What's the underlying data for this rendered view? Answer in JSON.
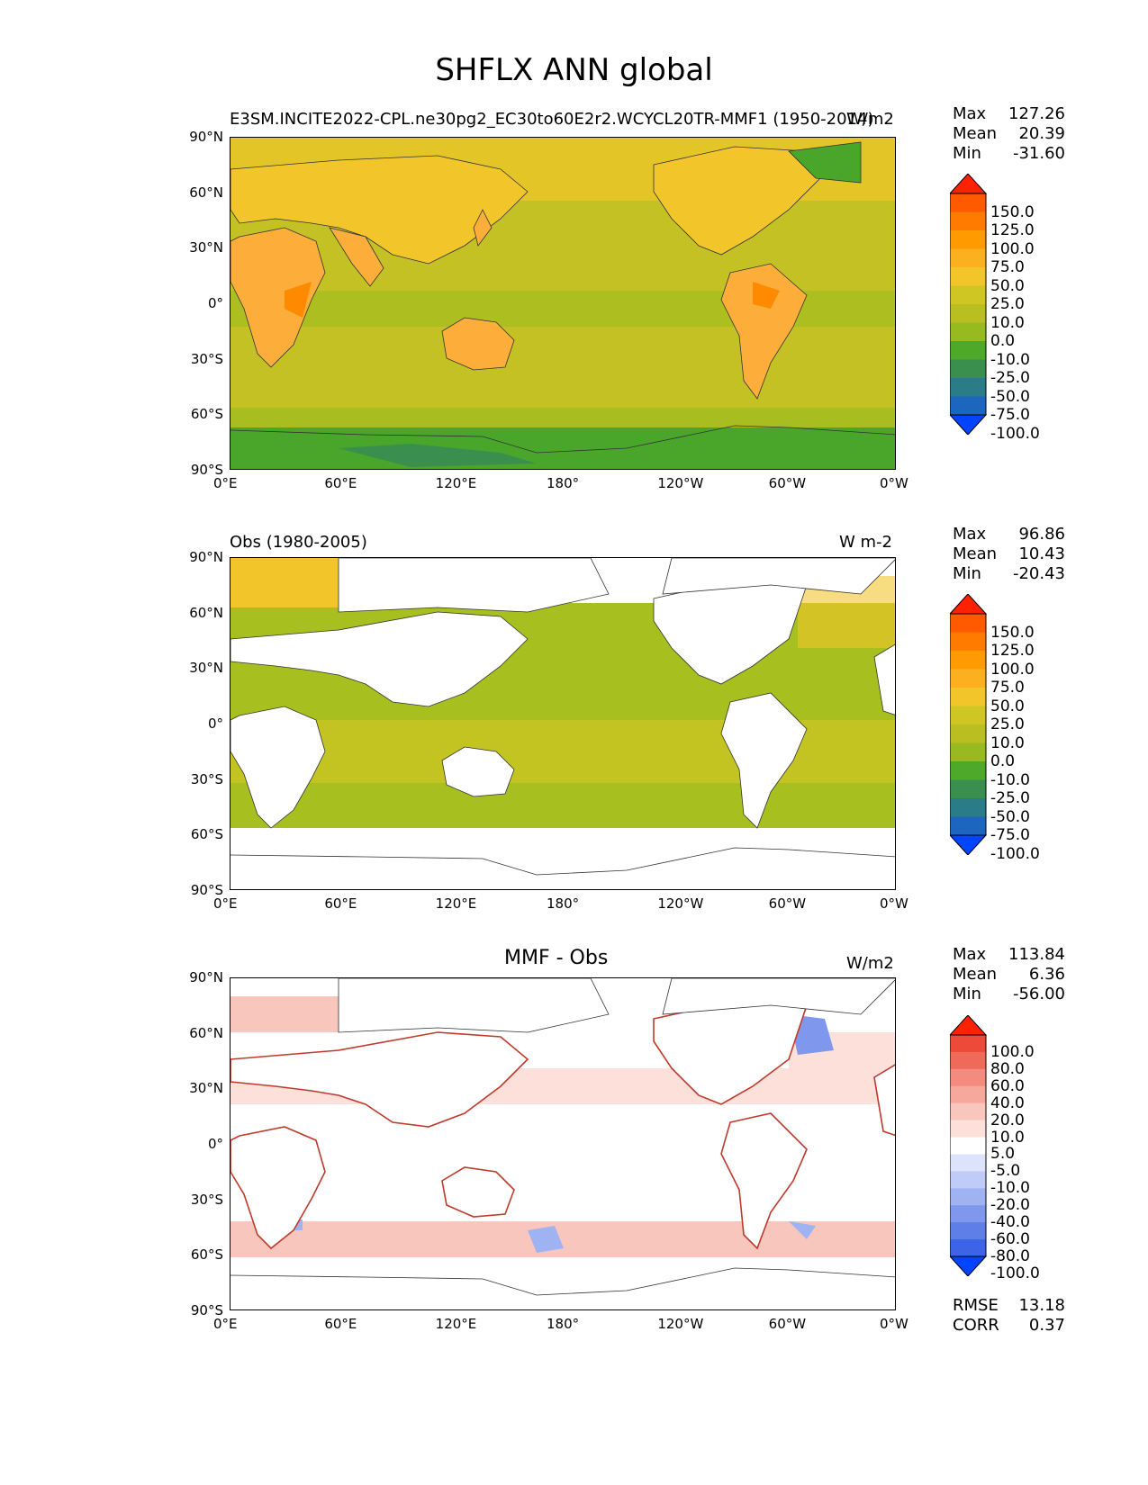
{
  "title": "SHFLX ANN global",
  "panels": [
    {
      "left_text": "E3SM.INCITE2022-CPL.ne30pg2_EC30to60E2r2.WCYCL20TR-MMF1 (1950-2014)",
      "center_text": "",
      "right_text": "W/m2",
      "stats": [
        {
          "label": "Max",
          "value": "127.26"
        },
        {
          "label": "Mean",
          "value": "20.39"
        },
        {
          "label": "Min",
          "value": "-31.60"
        }
      ],
      "colorbar": {
        "levels": [
          "150.0",
          "125.0",
          "100.0",
          "75.0",
          "50.0",
          "25.0",
          "10.0",
          "0.0",
          "-10.0",
          "-25.0",
          "-50.0",
          "-75.0",
          "-100.0"
        ],
        "colors": [
          "#ff2200",
          "#ff5a00",
          "#ff7b00",
          "#ff9a00",
          "#fcb020",
          "#f2c62a",
          "#cfc624",
          "#b9bf20",
          "#96ba1f",
          "#4ea829",
          "#3a8f4e",
          "#2a7c86",
          "#1c66c0",
          "#0044ff"
        ]
      },
      "map_colors": {
        "land": "#fdb03c",
        "ocean": "#c4c124",
        "high_lat": "#4aa62a",
        "ice": "#3a8f4e"
      }
    },
    {
      "left_text": "Obs (1980-2005)",
      "center_text": "",
      "right_text": "W m-2",
      "stats": [
        {
          "label": "Max",
          "value": "96.86"
        },
        {
          "label": "Mean",
          "value": "10.43"
        },
        {
          "label": "Min",
          "value": "-20.43"
        }
      ],
      "colorbar": {
        "levels": [
          "150.0",
          "125.0",
          "100.0",
          "75.0",
          "50.0",
          "25.0",
          "10.0",
          "0.0",
          "-10.0",
          "-25.0",
          "-50.0",
          "-75.0",
          "-100.0"
        ],
        "colors": [
          "#ff2200",
          "#ff5a00",
          "#ff7b00",
          "#ff9a00",
          "#fcb020",
          "#f2c62a",
          "#cfc624",
          "#b9bf20",
          "#96ba1f",
          "#4ea829",
          "#3a8f4e",
          "#2a7c86",
          "#1c66c0",
          "#0044ff"
        ]
      },
      "map_colors": {
        "land": "#ffffff",
        "ocean": "#a8bf20",
        "band": "#cfc624",
        "north": "#f2c62a"
      }
    },
    {
      "left_text": "",
      "center_text": "MMF - Obs",
      "right_text": "W/m2",
      "stats": [
        {
          "label": "Max",
          "value": "113.84"
        },
        {
          "label": "Mean",
          "value": "6.36"
        },
        {
          "label": "Min",
          "value": "-56.00"
        }
      ],
      "extra_stats": [
        {
          "label": "RMSE",
          "value": "13.18"
        },
        {
          "label": "CORR",
          "value": "0.37"
        }
      ],
      "colorbar": {
        "levels": [
          "100.0",
          "80.0",
          "60.0",
          "40.0",
          "20.0",
          "10.0",
          "5.0",
          "-5.0",
          "-10.0",
          "-20.0",
          "-40.0",
          "-60.0",
          "-80.0",
          "-100.0"
        ],
        "colors": [
          "#ff2200",
          "#ee4a3a",
          "#f06a5a",
          "#f38c7e",
          "#f6a89c",
          "#f9c6bd",
          "#fde0da",
          "#ffffff",
          "#dde3fb",
          "#c0cbf7",
          "#9fb2f2",
          "#7f98ee",
          "#5e7ee8",
          "#3d64e6",
          "#0044ff"
        ]
      },
      "map_colors": {
        "land": "#ffffff",
        "ocean": "#ffffff",
        "pos": "#f9c6bd",
        "neg": "#9fb2f2",
        "coast": "#c0392b"
      }
    }
  ],
  "y_ticks": [
    "90°N",
    "60°N",
    "30°N",
    "0°",
    "30°S",
    "60°S",
    "90°S"
  ],
  "x_ticks": [
    "0°E",
    "60°E",
    "120°E",
    "180°",
    "120°W",
    "60°W",
    "0°W"
  ]
}
